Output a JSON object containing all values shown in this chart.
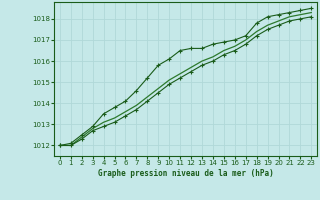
{
  "xlabel": "Graphe pression niveau de la mer (hPa)",
  "bg_color": "#c5e8e8",
  "grid_color": "#b0d8d8",
  "line_color": "#1a5c1a",
  "line_color2": "#2d7a2d",
  "xlim": [
    -0.5,
    23.5
  ],
  "ylim": [
    1011.5,
    1018.8
  ],
  "yticks": [
    1012,
    1013,
    1014,
    1015,
    1016,
    1017,
    1018
  ],
  "xticks": [
    0,
    1,
    2,
    3,
    4,
    5,
    6,
    7,
    8,
    9,
    10,
    11,
    12,
    13,
    14,
    15,
    16,
    17,
    18,
    19,
    20,
    21,
    22,
    23
  ],
  "series1_x": [
    0,
    1,
    2,
    3,
    4,
    5,
    6,
    7,
    8,
    9,
    10,
    11,
    12,
    13,
    14,
    15,
    16,
    17,
    18,
    19,
    20,
    21,
    22,
    23
  ],
  "series1_y": [
    1012.0,
    1012.1,
    1012.5,
    1012.9,
    1013.5,
    1013.8,
    1014.1,
    1014.6,
    1015.2,
    1015.8,
    1016.1,
    1016.5,
    1016.6,
    1016.6,
    1016.8,
    1016.9,
    1017.0,
    1017.2,
    1017.8,
    1018.1,
    1018.2,
    1018.3,
    1018.4,
    1018.5
  ],
  "series2_x": [
    0,
    1,
    2,
    3,
    4,
    5,
    6,
    7,
    8,
    9,
    10,
    11,
    12,
    13,
    14,
    15,
    16,
    17,
    18,
    19,
    20,
    21,
    22,
    23
  ],
  "series2_y": [
    1012.0,
    1012.0,
    1012.4,
    1012.8,
    1013.1,
    1013.3,
    1013.6,
    1013.9,
    1014.3,
    1014.7,
    1015.1,
    1015.4,
    1015.7,
    1016.0,
    1016.2,
    1016.5,
    1016.7,
    1017.0,
    1017.4,
    1017.7,
    1017.9,
    1018.1,
    1018.2,
    1018.3
  ],
  "series3_x": [
    0,
    1,
    2,
    3,
    4,
    5,
    6,
    7,
    8,
    9,
    10,
    11,
    12,
    13,
    14,
    15,
    16,
    17,
    18,
    19,
    20,
    21,
    22,
    23
  ],
  "series3_y": [
    1012.0,
    1012.0,
    1012.3,
    1012.7,
    1012.9,
    1013.1,
    1013.4,
    1013.7,
    1014.1,
    1014.5,
    1014.9,
    1015.2,
    1015.5,
    1015.8,
    1016.0,
    1016.3,
    1016.5,
    1016.8,
    1017.2,
    1017.5,
    1017.7,
    1017.9,
    1018.0,
    1018.1
  ]
}
